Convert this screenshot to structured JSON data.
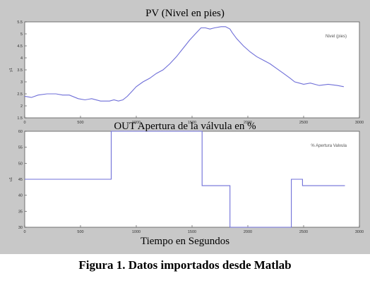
{
  "caption": "Figura 1. Datos importados desde Matlab",
  "chart_data": [
    {
      "type": "line",
      "title": "PV (Nivel en pies)",
      "xlabel": "",
      "ylabel": "y1",
      "xlim": [
        0,
        3000
      ],
      "ylim": [
        1.5,
        5.5
      ],
      "xticks": [
        0,
        500,
        1000,
        1500,
        2000,
        2500,
        3000
      ],
      "yticks": [
        1.5,
        2,
        2.5,
        3,
        3.5,
        4,
        4.5,
        5,
        5.5
      ],
      "legend": "top-right",
      "grid": false,
      "line_color": "#6f6fd8",
      "series": [
        {
          "name": "Nivel (pies)",
          "x": [
            0,
            60,
            120,
            200,
            280,
            340,
            400,
            480,
            540,
            600,
            680,
            760,
            800,
            840,
            880,
            920,
            960,
            1000,
            1060,
            1120,
            1180,
            1240,
            1300,
            1360,
            1420,
            1480,
            1540,
            1580,
            1620,
            1660,
            1700,
            1760,
            1800,
            1840,
            1860,
            1900,
            1960,
            2020,
            2080,
            2140,
            2200,
            2260,
            2320,
            2380,
            2420,
            2460,
            2500,
            2560,
            2640,
            2720,
            2800,
            2860
          ],
          "y": [
            2.4,
            2.35,
            2.45,
            2.5,
            2.5,
            2.45,
            2.45,
            2.3,
            2.25,
            2.3,
            2.2,
            2.2,
            2.25,
            2.2,
            2.25,
            2.4,
            2.6,
            2.8,
            3.0,
            3.15,
            3.35,
            3.5,
            3.75,
            4.05,
            4.4,
            4.75,
            5.05,
            5.25,
            5.25,
            5.2,
            5.25,
            5.3,
            5.3,
            5.2,
            5.05,
            4.8,
            4.5,
            4.25,
            4.05,
            3.9,
            3.75,
            3.55,
            3.35,
            3.15,
            3.0,
            2.95,
            2.9,
            2.95,
            2.85,
            2.9,
            2.85,
            2.8
          ]
        }
      ]
    },
    {
      "type": "line",
      "title": "OUT Apertura de la válvula en %",
      "xlabel": "Tiempo en Segundos",
      "ylabel": "u1",
      "xlim": [
        0,
        3000
      ],
      "ylim": [
        30,
        60
      ],
      "xticks": [
        0,
        500,
        1000,
        1500,
        2000,
        2500,
        3000
      ],
      "yticks": [
        30,
        35,
        40,
        45,
        50,
        55,
        60
      ],
      "legend": "top-right",
      "grid": false,
      "line_color": "#6f6fd8",
      "series": [
        {
          "name": "% Apertura Valvula",
          "x": [
            0,
            775,
            775,
            1590,
            1590,
            1840,
            1840,
            2390,
            2390,
            2490,
            2490,
            2870
          ],
          "y": [
            45,
            45,
            60,
            60,
            43,
            43,
            30,
            30,
            45,
            45,
            43,
            43
          ]
        }
      ]
    }
  ]
}
